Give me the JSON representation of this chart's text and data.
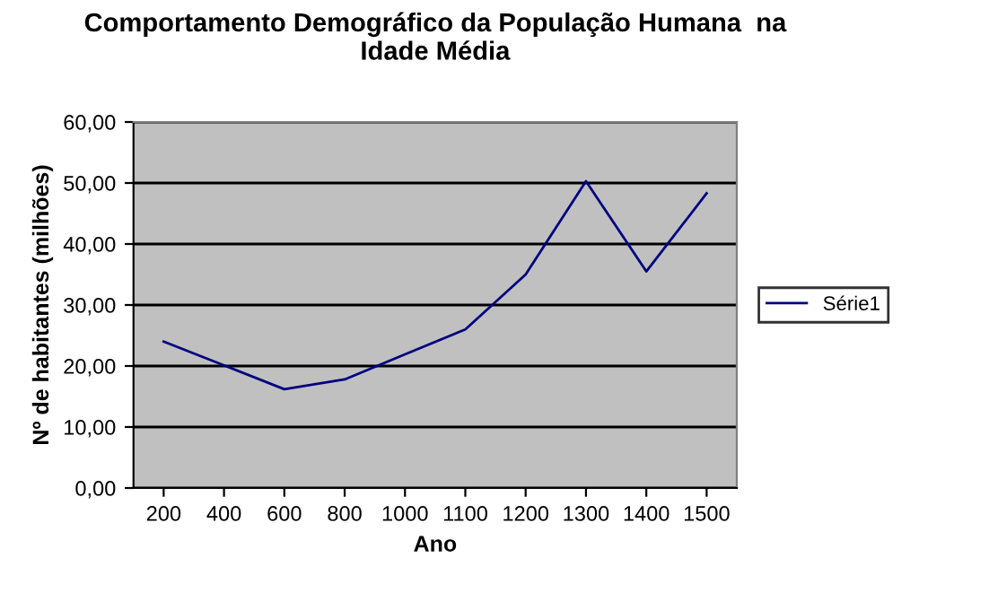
{
  "chart_data": {
    "type": "line",
    "title": "Comportamento Demográfico da População Humana  na\nIdade Média",
    "xlabel": "Ano",
    "ylabel": "Nº de habitantes (milhões)",
    "categories": [
      "200",
      "400",
      "600",
      "800",
      "1000",
      "1100",
      "1200",
      "1300",
      "1400",
      "1500"
    ],
    "series": [
      {
        "name": "Série1",
        "color": "#000080",
        "values": [
          24.0,
          20.1,
          16.2,
          17.8,
          21.9,
          26.0,
          35.0,
          50.3,
          35.5,
          48.3
        ]
      }
    ],
    "ylim": [
      0,
      60
    ],
    "yticks": [
      {
        "value": 0,
        "label": "0,00"
      },
      {
        "value": 10,
        "label": "10,00"
      },
      {
        "value": 20,
        "label": "20,00"
      },
      {
        "value": 30,
        "label": "30,00"
      },
      {
        "value": 40,
        "label": "40,00"
      },
      {
        "value": 50,
        "label": "50,00"
      },
      {
        "value": 60,
        "label": "60,00"
      }
    ],
    "grid": "y",
    "legend": "right",
    "marker": "none",
    "line_style": "solid"
  }
}
